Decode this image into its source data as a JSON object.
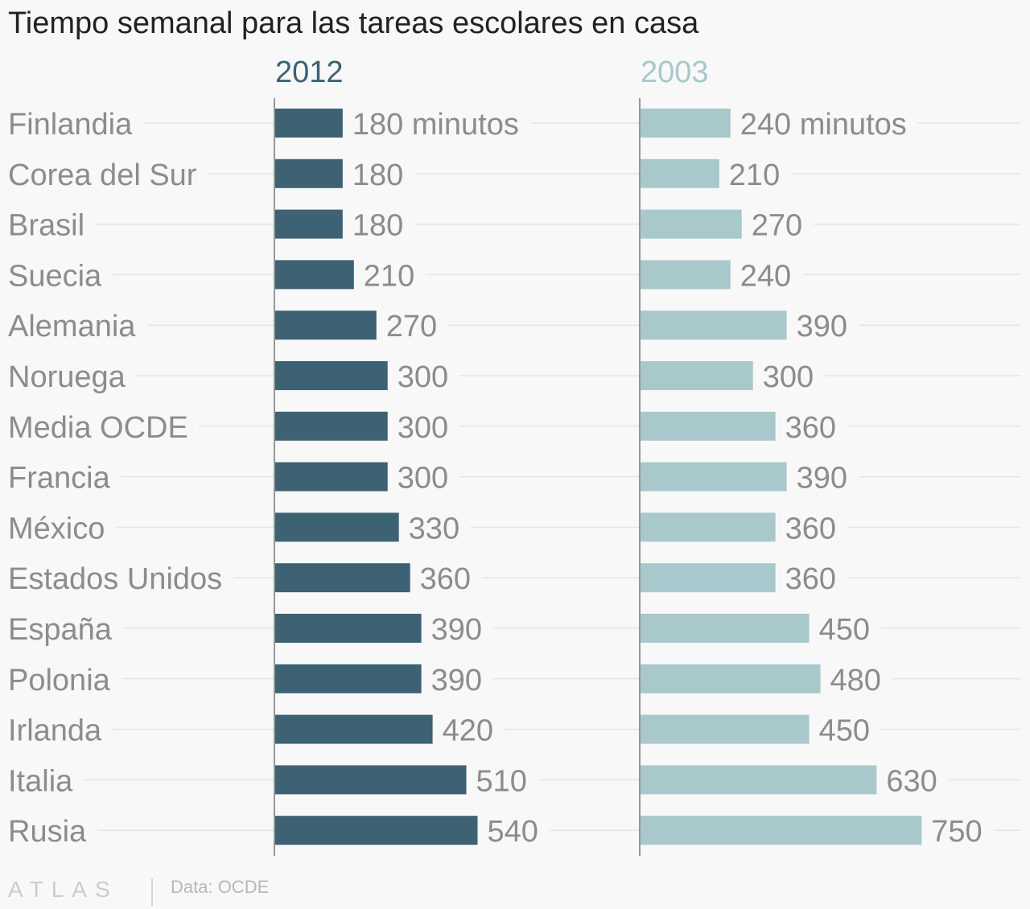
{
  "title": "Tiempo semanal para las tareas escolares en casa",
  "footer": {
    "logo": "ATLAS",
    "source": "Data: OCDE"
  },
  "colors": {
    "series_2012": "#3c6273",
    "series_2003": "#a8c8cc",
    "grid": "#e4e4e4",
    "label": "#8c8c8c",
    "axis": "#777777"
  },
  "chart_data": {
    "type": "bar",
    "orientation": "horizontal",
    "title": "Tiempo semanal para las tareas escolares en casa",
    "unit": "minutos",
    "categories": [
      "Finlandia",
      "Corea del Sur",
      "Brasil",
      "Suecia",
      "Alemania",
      "Noruega",
      "Media OCDE",
      "Francia",
      "México",
      "Estados Unidos",
      "España",
      "Polonia",
      "Irlanda",
      "Italia",
      "Rusia"
    ],
    "series": [
      {
        "name": "2012",
        "values": [
          180,
          180,
          180,
          210,
          270,
          300,
          300,
          300,
          330,
          360,
          390,
          390,
          420,
          510,
          540
        ],
        "labels": [
          "180 minutos",
          "180",
          "180",
          "210",
          "270",
          "300",
          "300",
          "300",
          "330",
          "360",
          "390",
          "390",
          "420",
          "510",
          "540"
        ]
      },
      {
        "name": "2003",
        "values": [
          240,
          210,
          270,
          240,
          390,
          300,
          360,
          390,
          360,
          360,
          450,
          480,
          450,
          630,
          750
        ],
        "labels": [
          "240 minutos",
          "210",
          "270",
          "240",
          "390",
          "300",
          "360",
          "390",
          "360",
          "360",
          "450",
          "480",
          "450",
          "630",
          "750"
        ]
      }
    ]
  }
}
